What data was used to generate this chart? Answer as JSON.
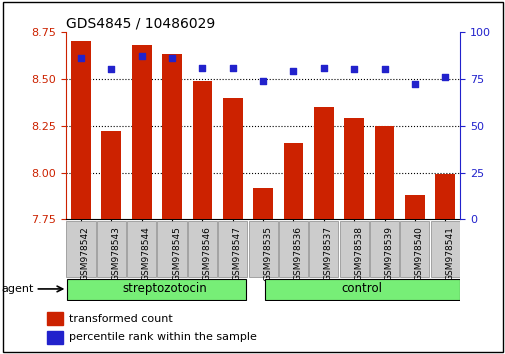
{
  "title": "GDS4845 / 10486029",
  "samples": [
    "GSM978542",
    "GSM978543",
    "GSM978544",
    "GSM978545",
    "GSM978546",
    "GSM978547",
    "GSM978535",
    "GSM978536",
    "GSM978537",
    "GSM978538",
    "GSM978539",
    "GSM978540",
    "GSM978541"
  ],
  "bar_values": [
    8.7,
    8.22,
    8.68,
    8.63,
    8.49,
    8.4,
    7.92,
    8.16,
    8.35,
    8.29,
    8.25,
    7.88,
    7.99
  ],
  "percentile_values": [
    86,
    80,
    87,
    86,
    81,
    81,
    74,
    79,
    81,
    80,
    80,
    72,
    76
  ],
  "bar_bottom": 7.75,
  "ylim_left": [
    7.75,
    8.75
  ],
  "ylim_right": [
    0,
    100
  ],
  "yticks_left": [
    7.75,
    8.0,
    8.25,
    8.5,
    8.75
  ],
  "yticks_right": [
    0,
    25,
    50,
    75,
    100
  ],
  "gridlines": [
    8.0,
    8.25,
    8.5
  ],
  "bar_color": "#cc2200",
  "percentile_color": "#2222cc",
  "group1_label": "streptozotocin",
  "group2_label": "control",
  "group_boundary": 6,
  "group_color": "#77ee77",
  "agent_label": "agent",
  "legend_bar_label": "transformed count",
  "legend_pct_label": "percentile rank within the sample",
  "tick_bg_color": "#cccccc",
  "figure_width": 5.06,
  "figure_height": 3.54
}
